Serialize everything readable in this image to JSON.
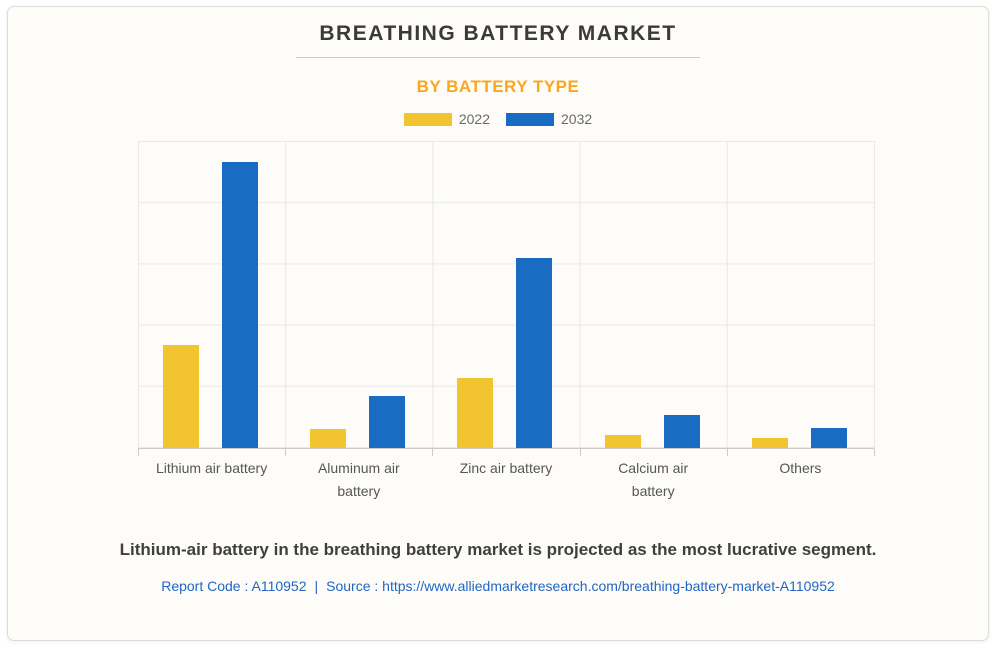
{
  "header": {
    "title": "BREATHING BATTERY MARKET",
    "subtitle": "BY BATTERY TYPE"
  },
  "chart_data": {
    "type": "bar",
    "title": "BREATHING BATTERY MARKET",
    "subtitle": "BY BATTERY TYPE",
    "categories": [
      "Lithium air battery",
      "Aluminum air battery",
      "Zinc air battery",
      "Calcium air battery",
      "Others"
    ],
    "series": [
      {
        "name": "2022",
        "color": "#f2c42f",
        "values": [
          33.7,
          6.2,
          22.9,
          4.2,
          3.3
        ]
      },
      {
        "name": "2032",
        "color": "#1a6bc2",
        "values": [
          93.1,
          17.0,
          61.8,
          10.8,
          6.5
        ]
      }
    ],
    "xlabel": "",
    "ylabel": "",
    "ylim": [
      0,
      100
    ],
    "y_tick_labels": [],
    "grid": true,
    "legend_position": "top"
  },
  "footer": {
    "statement": "Lithium-air battery in the breathing battery market is projected as the most lucrative segment.",
    "report_code": "Report Code : A110952",
    "separator": "|",
    "source": "Source : https://www.alliedmarketresearch.com/breathing-battery-market-A110952"
  },
  "colors": {
    "card_background": "#fdfcf9",
    "card_border": "#dcdcda",
    "title_text": "#3a3a3a",
    "subtitle_orange": "#fca61e",
    "series_2022_yellow": "#f2c42f",
    "series_2032_blue": "#1a6bc2",
    "gridline": "#e9e8e5",
    "axis_line": "#cbcbc9",
    "link_blue": "#2166c5"
  }
}
